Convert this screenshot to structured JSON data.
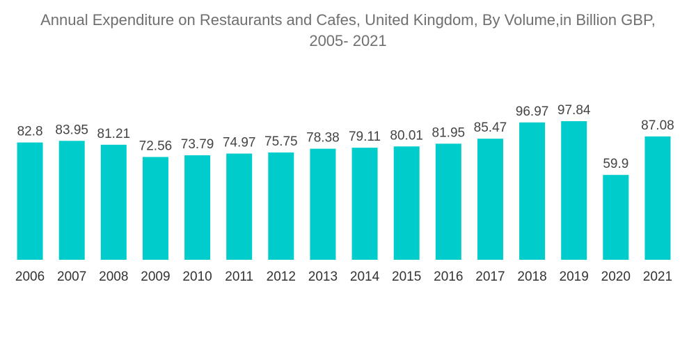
{
  "chart_data": {
    "type": "bar",
    "title_line1": "Annual Expenditure on Restaurants and Cafes, United Kingdom, By Volume,in Billion GBP,",
    "title_line2": "2005- 2021",
    "xlabel": "",
    "ylabel": "",
    "categories": [
      "2006",
      "2007",
      "2008",
      "2009",
      "2010",
      "2011",
      "2012",
      "2013",
      "2014",
      "2015",
      "2016",
      "2017",
      "2018",
      "2019",
      "2020",
      "2021"
    ],
    "values": [
      82.8,
      83.95,
      81.21,
      72.56,
      73.79,
      74.97,
      75.75,
      78.38,
      79.11,
      80.01,
      81.95,
      85.47,
      96.97,
      97.84,
      59.9,
      87.08
    ],
    "value_labels": [
      "82.8",
      "83.95",
      "81.21",
      "72.56",
      "73.79",
      "74.97",
      "75.75",
      "78.38",
      "79.11",
      "80.01",
      "81.95",
      "85.47",
      "96.97",
      "97.84",
      "59.9",
      "87.08"
    ],
    "ylim": [
      0,
      97.84
    ],
    "grid": false,
    "legend": "none",
    "bar_color": "#00cccc"
  }
}
